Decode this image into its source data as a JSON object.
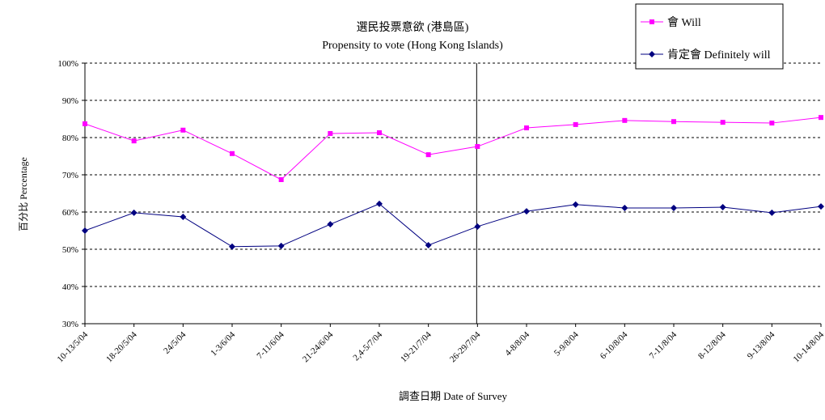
{
  "chart_data": {
    "type": "line",
    "title": "選民投票意欲 (港島區)",
    "subtitle": "Propensity to vote (Hong Kong Islands)",
    "xlabel": "調查日期 Date of Survey",
    "ylabel": "百分比 Percentage",
    "ylim": [
      30,
      100
    ],
    "yticks": [
      "30%",
      "40%",
      "50%",
      "60%",
      "70%",
      "80%",
      "90%",
      "100%"
    ],
    "grid": true,
    "legend_position": "top-right",
    "divider_after_category": "26-29/7/04",
    "categories": [
      "10-13/5/04",
      "18-20/5/04",
      "24/5/04",
      "1-3/6/04",
      "7-11/6/04",
      "21-24/6/04",
      "2,4-5/7/04",
      "19-21/7/04",
      "26-29/7/04",
      "4-8/8/04",
      "5-9/8/04",
      "6-10/8/04",
      "7-11/8/04",
      "8-12/8/04",
      "9-13/8/04",
      "10-14/8/04"
    ],
    "series": [
      {
        "name": "會 Will",
        "color": "#ff00ff",
        "marker": "square",
        "values": [
          83.7,
          79.1,
          82.0,
          75.7,
          68.7,
          81.1,
          81.3,
          75.4,
          77.6,
          82.6,
          83.5,
          84.6,
          84.3,
          84.1,
          83.9,
          85.4
        ]
      },
      {
        "name": "肯定會 Definitely will",
        "color": "#000080",
        "marker": "diamond",
        "values": [
          55.0,
          59.8,
          58.7,
          50.7,
          50.9,
          56.7,
          62.2,
          51.1,
          56.1,
          60.2,
          62.0,
          61.1,
          61.1,
          61.3,
          59.8,
          61.5
        ]
      }
    ]
  }
}
